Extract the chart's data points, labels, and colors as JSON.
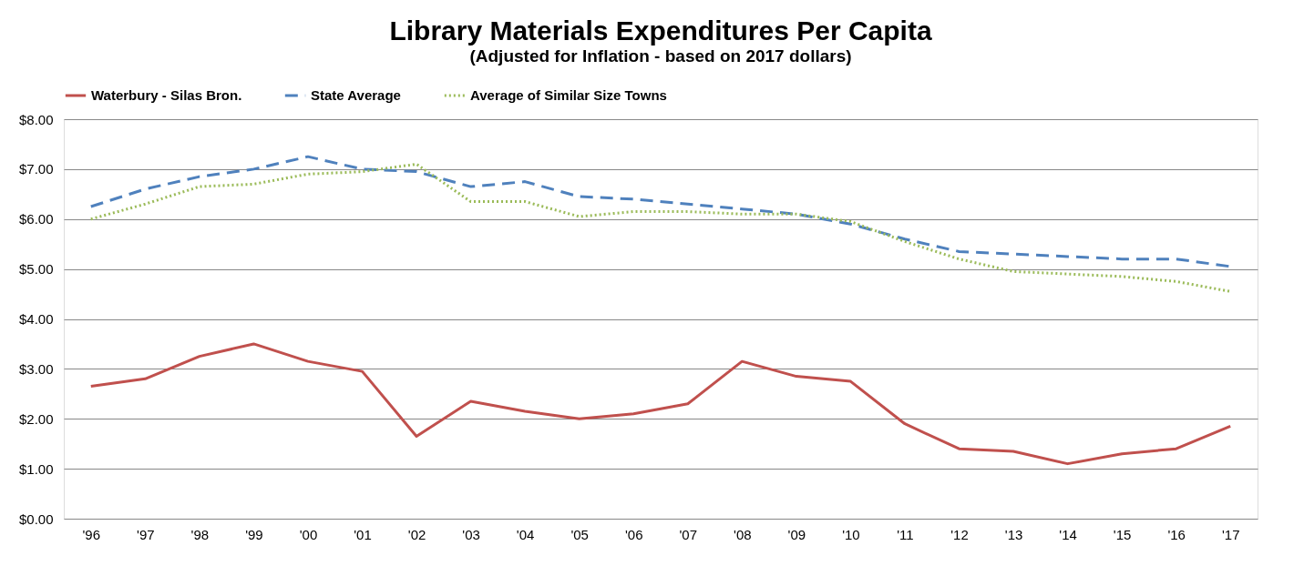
{
  "chart_data": {
    "type": "line",
    "title": "Library Materials Expenditures Per Capita",
    "subtitle": "(Adjusted for Inflation - based on 2017 dollars)",
    "categories": [
      "'96",
      "'97",
      "'98",
      "'99",
      "'00",
      "'01",
      "'02",
      "'03",
      "'04",
      "'05",
      "'06",
      "'07",
      "'08",
      "'09",
      "'10",
      "'11",
      "'12",
      "'13",
      "'14",
      "'15",
      "'16",
      "'17"
    ],
    "series": [
      {
        "name": "Waterbury - Silas Bron.",
        "color": "#c0504d",
        "line_style": "solid",
        "values": [
          2.65,
          2.8,
          3.25,
          3.5,
          3.15,
          2.95,
          1.65,
          2.35,
          2.15,
          2.0,
          2.1,
          2.3,
          3.15,
          2.85,
          2.75,
          1.9,
          1.4,
          1.35,
          1.1,
          1.3,
          1.4,
          1.85
        ]
      },
      {
        "name": "State Average",
        "color": "#4f81bd",
        "line_style": "dashed",
        "values": [
          6.25,
          6.6,
          6.85,
          7.0,
          7.25,
          7.0,
          6.95,
          6.65,
          6.75,
          6.45,
          6.4,
          6.3,
          6.2,
          6.1,
          5.9,
          5.6,
          5.35,
          5.3,
          5.25,
          5.2,
          5.2,
          5.05
        ]
      },
      {
        "name": "Average of Similar Size Towns",
        "color": "#9bbb59",
        "line_style": "dotted",
        "values": [
          6.0,
          6.3,
          6.65,
          6.7,
          6.9,
          6.95,
          7.1,
          6.35,
          6.35,
          6.05,
          6.15,
          6.15,
          6.1,
          6.1,
          5.95,
          5.55,
          5.2,
          4.95,
          4.9,
          4.85,
          4.75,
          4.55
        ]
      }
    ],
    "ylim": [
      0,
      8
    ],
    "yticks": [
      {
        "value": 0,
        "label": "$0.00"
      },
      {
        "value": 1,
        "label": "$1.00"
      },
      {
        "value": 2,
        "label": "$2.00"
      },
      {
        "value": 3,
        "label": "$3.00"
      },
      {
        "value": 4,
        "label": "$4.00"
      },
      {
        "value": 5,
        "label": "$5.00"
      },
      {
        "value": 6,
        "label": "$6.00"
      },
      {
        "value": 7,
        "label": "$7.00"
      },
      {
        "value": 8,
        "label": "$8.00"
      }
    ],
    "grid": "y",
    "legend": "top",
    "marker": "none"
  }
}
